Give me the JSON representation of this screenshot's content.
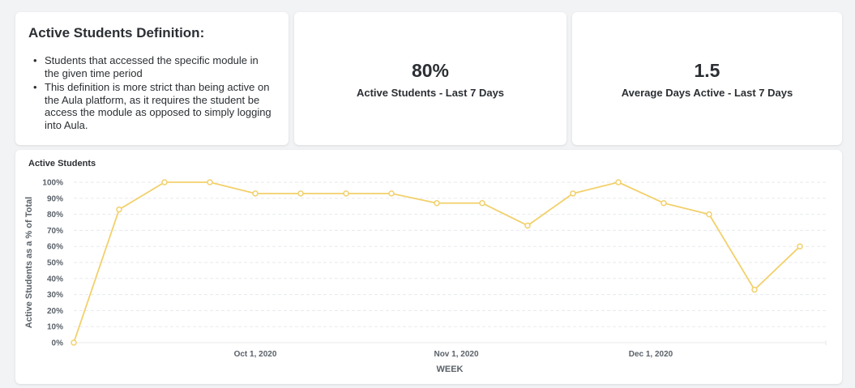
{
  "definition": {
    "title": "Active Students Definition:",
    "bullets": [
      "Students that accessed the specific module in the given time period",
      "This definition is more strict than being active on the Aula platform, as it requires the student be access the module as opposed to simply logging into Aula."
    ]
  },
  "kpis": [
    {
      "value": "80%",
      "label": "Active Students - Last 7 Days"
    },
    {
      "value": "1.5",
      "label": "Average Days Active - Last 7 Days"
    }
  ],
  "colors": {
    "line": "#f2d06b",
    "grid": "#e8eaed",
    "text": "#5a6169"
  },
  "chart_data": {
    "type": "line",
    "title": "Active Students",
    "xlabel": "WEEK",
    "ylabel": "Active Students as a % of Total",
    "ylim": [
      0,
      100
    ],
    "yticks": [
      0,
      10,
      20,
      30,
      40,
      50,
      60,
      70,
      80,
      90,
      100
    ],
    "ytick_labels": [
      "0%",
      "10%",
      "20%",
      "30%",
      "40%",
      "50%",
      "60%",
      "70%",
      "80%",
      "90%",
      "100%"
    ],
    "xlim": [
      "2020-09-03",
      "2020-12-28"
    ],
    "xticks": [
      {
        "date": "2020-10-01",
        "label": "Oct 1, 2020"
      },
      {
        "date": "2020-11-01",
        "label": "Nov 1, 2020"
      },
      {
        "date": "2020-12-01",
        "label": "Dec 1, 2020"
      }
    ],
    "grid": true,
    "series": [
      {
        "x": [
          "2020-09-03",
          "2020-09-10",
          "2020-09-17",
          "2020-09-24",
          "2020-10-01",
          "2020-10-08",
          "2020-10-15",
          "2020-10-22",
          "2020-10-29",
          "2020-11-05",
          "2020-11-12",
          "2020-11-19",
          "2020-11-26",
          "2020-12-03",
          "2020-12-10",
          "2020-12-17",
          "2020-12-24"
        ],
        "values": [
          0,
          83,
          100,
          100,
          93,
          93,
          93,
          93,
          87,
          87,
          73,
          93,
          100,
          87,
          80,
          33,
          60
        ]
      }
    ]
  }
}
